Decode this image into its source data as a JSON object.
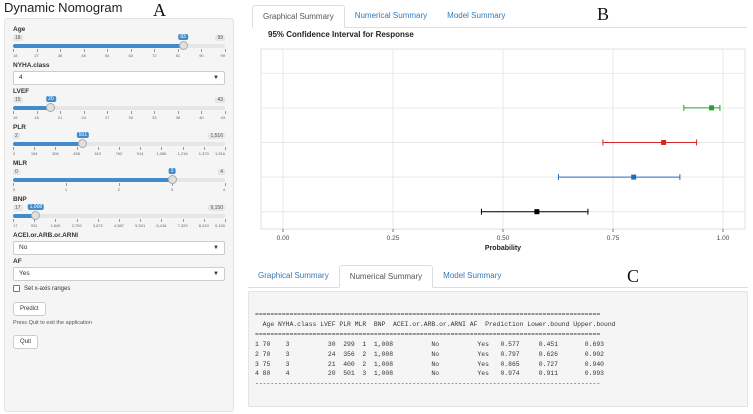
{
  "app_title": "Dynamic Nomogram",
  "figure_letters": {
    "a": "A",
    "b": "B",
    "c": "C"
  },
  "sidebar": {
    "age": {
      "label": "Age",
      "min": "18",
      "max": "99",
      "value": "83",
      "fraction": 0.802,
      "ticks": [
        "18",
        "27",
        "36",
        "45",
        "54",
        "63",
        "72",
        "81",
        "90",
        "99"
      ]
    },
    "nyha": {
      "label": "NYHA.class",
      "value": "4"
    },
    "lvef": {
      "label": "LVEF",
      "min": "15",
      "max": "43",
      "value": "20",
      "fraction": 0.179,
      "ticks": [
        "15",
        "18",
        "21",
        "24",
        "27",
        "30",
        "33",
        "36",
        "40",
        "43"
      ]
    },
    "plr": {
      "label": "PLR",
      "min": "2",
      "max": "1,516",
      "value": "501",
      "fraction": 0.33,
      "ticks": [
        "2",
        "154",
        "306",
        "458",
        "610",
        "762",
        "914",
        "1,066",
        "1,218",
        "1,370",
        "1,516"
      ]
    },
    "mlr": {
      "label": "MLR",
      "min": "0",
      "max": "4",
      "value": "3",
      "fraction": 0.75,
      "ticks": [
        "0",
        "1",
        "2",
        "3",
        "4"
      ]
    },
    "bnp": {
      "label": "BNP",
      "min": "17",
      "max": "9,150",
      "value": "1,008",
      "fraction": 0.108,
      "ticks": [
        "17",
        "931",
        "1,840",
        "2,759",
        "3,672",
        "4,587",
        "5,501",
        "6,416",
        "7,329",
        "8,243",
        "9,150"
      ]
    },
    "acei": {
      "label": "ACEI.or.ARB.or.ARNI",
      "value": "No"
    },
    "af": {
      "label": "AF",
      "value": "Yes"
    },
    "set_axis_label": "Set x-axis ranges",
    "predict_label": "Predict",
    "quit_note": "Press Quit to exit the application",
    "quit_label": "Quit"
  },
  "tabs_top": [
    {
      "label": "Graphical Summary",
      "active": true
    },
    {
      "label": "Numerical Summary",
      "active": false
    },
    {
      "label": "Model Summary",
      "active": false
    }
  ],
  "tabs_bottom": [
    {
      "label": "Graphical Summary",
      "active": false
    },
    {
      "label": "Numerical Summary",
      "active": true
    },
    {
      "label": "Model Summary",
      "active": false
    }
  ],
  "chart_data": {
    "type": "scatter",
    "title": "95% Confidence Interval for Response",
    "xlabel": "Probability",
    "ylabel": "",
    "xlim": [
      -0.05,
      1.05
    ],
    "xticks": [
      "0.00",
      "0.25",
      "0.50",
      "0.75",
      "1.00"
    ],
    "xtick_values": [
      0,
      0.25,
      0.5,
      0.75,
      1.0
    ],
    "grid": true,
    "series": [
      {
        "color": "#000000",
        "prediction": 0.577,
        "lower": 0.451,
        "upper": 0.693
      },
      {
        "color": "#1f6fbf",
        "prediction": 0.797,
        "lower": 0.626,
        "upper": 0.902
      },
      {
        "color": "#d62728",
        "prediction": 0.865,
        "lower": 0.727,
        "upper": 0.94
      },
      {
        "color": "#2ca02c",
        "prediction": 0.974,
        "lower": 0.911,
        "upper": 0.993
      }
    ]
  },
  "numerical_summary": {
    "rule": "==========================================================================================",
    "header": "  Age NYHA.class LVEF PLR MLR  BNP  ACEI.or.ARB.or.ARNI AF  Prediction Lower.bound Upper.bound",
    "rows": [
      "1 70    3          30  299  1  1,008          No          Yes   0.577     0.451       0.693",
      "2 70    3          24  356  2  1,008          No          Yes   0.797     0.626       0.902",
      "3 75    3          21  400  2  1,008          No          Yes   0.865     0.727       0.940",
      "4 80    4          20  501  3  1,008          No          Yes   0.974     0.911       0.993"
    ],
    "bottom_rule": "------------------------------------------------------------------------------------------"
  }
}
